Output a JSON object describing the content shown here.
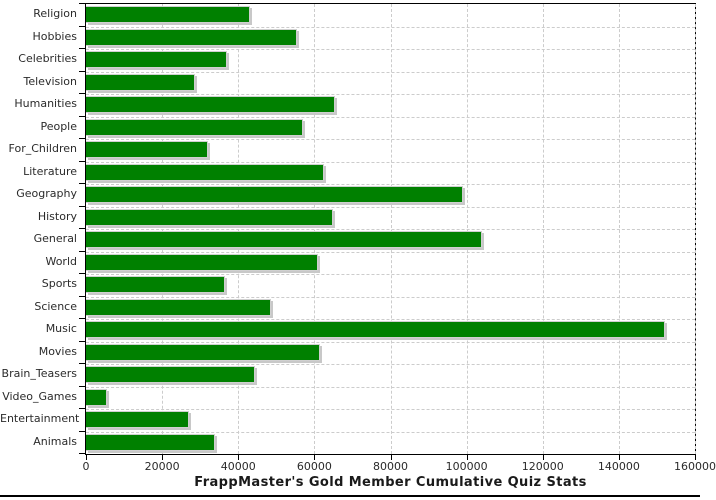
{
  "chart_data": {
    "type": "bar",
    "orientation": "horizontal",
    "title": "FrappMaster's Gold Member Cumulative Quiz Stats",
    "categories": [
      "Religion",
      "Hobbies",
      "Celebrities",
      "Television",
      "Humanities",
      "People",
      "For_Children",
      "Literature",
      "Geography",
      "History",
      "General",
      "World",
      "Sports",
      "Science",
      "Music",
      "Movies",
      "Brain_Teasers",
      "Video_Games",
      "Entertainment",
      "Animals"
    ],
    "values": [
      43000,
      55500,
      37000,
      28500,
      65500,
      57000,
      32000,
      62500,
      99000,
      65000,
      104000,
      61000,
      36500,
      48500,
      152000,
      61500,
      44500,
      5500,
      27000,
      34000
    ],
    "xlim": [
      0,
      160000
    ],
    "x_ticks": [
      0,
      20000,
      40000,
      60000,
      80000,
      100000,
      120000,
      140000,
      160000
    ],
    "grid": true,
    "legend_position": "none",
    "colors": {
      "bar_fill": "#008000",
      "bar_border": "#d0d0d0",
      "bar_shadow": "#c8c8c8",
      "gridline": "#cccccc",
      "axis_border": "#000000",
      "tick_label": "#2b2b2b",
      "background": "#ffffff"
    }
  }
}
